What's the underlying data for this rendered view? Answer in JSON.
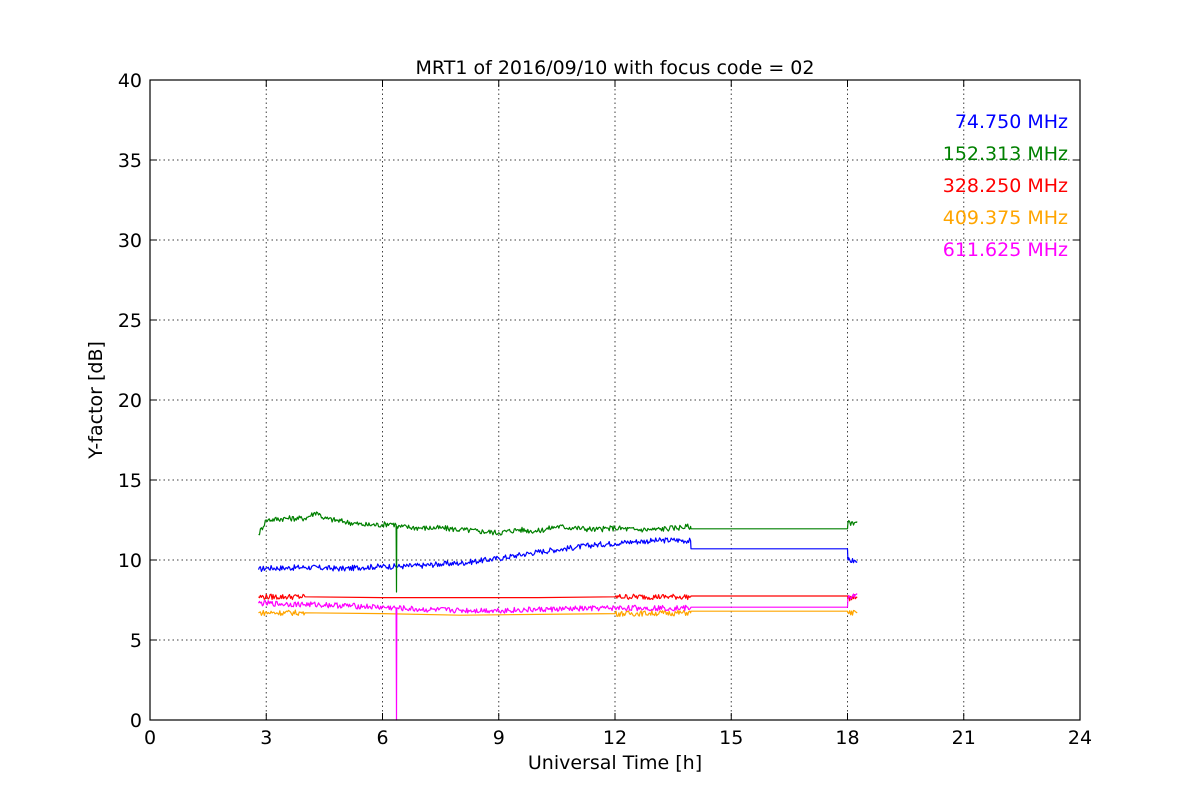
{
  "chart_data": {
    "type": "line",
    "title": "MRT1 of 2016/09/10 with focus code = 02",
    "xlabel": "Universal Time [h]",
    "ylabel": "Y-factor [dB]",
    "xlim": [
      0,
      24
    ],
    "ylim": [
      0,
      40
    ],
    "xticks": [
      0,
      3,
      6,
      9,
      12,
      15,
      18,
      21,
      24
    ],
    "yticks": [
      0,
      5,
      10,
      15,
      20,
      25,
      30,
      35,
      40
    ],
    "xtick_labels": [
      "0",
      "3",
      "6",
      "9",
      "12",
      "15",
      "18",
      "21",
      "24"
    ],
    "ytick_labels": [
      "0",
      "5",
      "10",
      "15",
      "20",
      "25",
      "30",
      "35",
      "40"
    ],
    "grid": true,
    "legend_position": "top-right",
    "series": [
      {
        "name": "74.750 MHz",
        "color": "#0000ff",
        "points": [
          [
            2.8,
            9.4
          ],
          [
            3.0,
            9.5
          ],
          [
            3.5,
            9.5
          ],
          [
            4.0,
            9.55
          ],
          [
            4.5,
            9.5
          ],
          [
            5.0,
            9.45
          ],
          [
            5.5,
            9.55
          ],
          [
            6.0,
            9.6
          ],
          [
            6.5,
            9.6
          ],
          [
            7.0,
            9.65
          ],
          [
            7.5,
            9.75
          ],
          [
            8.0,
            9.8
          ],
          [
            8.5,
            9.95
          ],
          [
            9.0,
            10.1
          ],
          [
            9.5,
            10.3
          ],
          [
            10.0,
            10.5
          ],
          [
            10.5,
            10.65
          ],
          [
            11.0,
            10.8
          ],
          [
            11.5,
            10.95
          ],
          [
            12.0,
            11.05
          ],
          [
            12.5,
            11.15
          ],
          [
            13.0,
            11.2
          ],
          [
            13.5,
            11.25
          ],
          [
            13.95,
            11.2
          ],
          [
            13.96,
            10.7
          ],
          [
            18.0,
            10.7
          ],
          [
            18.01,
            10.0
          ],
          [
            18.25,
            9.9
          ]
        ]
      },
      {
        "name": "152.313 MHz",
        "color": "#008000",
        "points": [
          [
            2.8,
            11.6
          ],
          [
            3.0,
            12.5
          ],
          [
            3.5,
            12.6
          ],
          [
            4.0,
            12.6
          ],
          [
            4.3,
            13.0
          ],
          [
            4.5,
            12.6
          ],
          [
            5.0,
            12.4
          ],
          [
            5.5,
            12.2
          ],
          [
            6.0,
            12.2
          ],
          [
            6.2,
            12.3
          ],
          [
            6.35,
            12.2
          ],
          [
            6.36,
            8.0
          ],
          [
            6.37,
            12.1
          ],
          [
            7.0,
            12.0
          ],
          [
            7.5,
            12.0
          ],
          [
            8.0,
            11.9
          ],
          [
            8.5,
            11.8
          ],
          [
            9.0,
            11.7
          ],
          [
            9.5,
            11.9
          ],
          [
            10.0,
            11.8
          ],
          [
            10.5,
            12.1
          ],
          [
            11.0,
            12.0
          ],
          [
            11.5,
            11.9
          ],
          [
            12.0,
            12.0
          ],
          [
            12.5,
            11.9
          ],
          [
            13.0,
            11.9
          ],
          [
            13.5,
            12.0
          ],
          [
            13.95,
            12.1
          ],
          [
            13.96,
            11.95
          ],
          [
            18.0,
            11.95
          ],
          [
            18.01,
            12.3
          ],
          [
            18.25,
            12.4
          ]
        ]
      },
      {
        "name": "328.250 MHz",
        "color": "#ff0000",
        "points": [
          [
            2.8,
            7.7
          ],
          [
            4.0,
            7.7
          ],
          [
            6.0,
            7.65
          ],
          [
            8.0,
            7.65
          ],
          [
            10.0,
            7.65
          ],
          [
            12.0,
            7.7
          ],
          [
            13.95,
            7.7
          ],
          [
            13.96,
            7.75
          ],
          [
            18.0,
            7.75
          ],
          [
            18.01,
            7.6
          ],
          [
            18.25,
            7.7
          ]
        ]
      },
      {
        "name": "409.375 MHz",
        "color": "#ffa500",
        "points": [
          [
            2.8,
            6.7
          ],
          [
            4.0,
            6.7
          ],
          [
            6.0,
            6.65
          ],
          [
            8.0,
            6.55
          ],
          [
            10.0,
            6.6
          ],
          [
            12.0,
            6.65
          ],
          [
            13.95,
            6.7
          ],
          [
            13.96,
            6.8
          ],
          [
            18.0,
            6.8
          ],
          [
            18.01,
            6.7
          ],
          [
            18.25,
            6.7
          ]
        ]
      },
      {
        "name": "611.625 MHz",
        "color": "#ff00ff",
        "points": [
          [
            2.8,
            7.3
          ],
          [
            3.5,
            7.25
          ],
          [
            4.5,
            7.2
          ],
          [
            5.5,
            7.1
          ],
          [
            6.35,
            7.0
          ],
          [
            6.36,
            0.0
          ],
          [
            6.37,
            7.0
          ],
          [
            7.0,
            6.9
          ],
          [
            8.0,
            6.85
          ],
          [
            9.0,
            6.85
          ],
          [
            10.0,
            6.9
          ],
          [
            11.0,
            6.95
          ],
          [
            12.0,
            7.0
          ],
          [
            13.0,
            7.0
          ],
          [
            13.95,
            7.0
          ],
          [
            13.96,
            7.05
          ],
          [
            18.0,
            7.05
          ],
          [
            18.01,
            7.6
          ],
          [
            18.25,
            7.9
          ]
        ]
      }
    ]
  }
}
